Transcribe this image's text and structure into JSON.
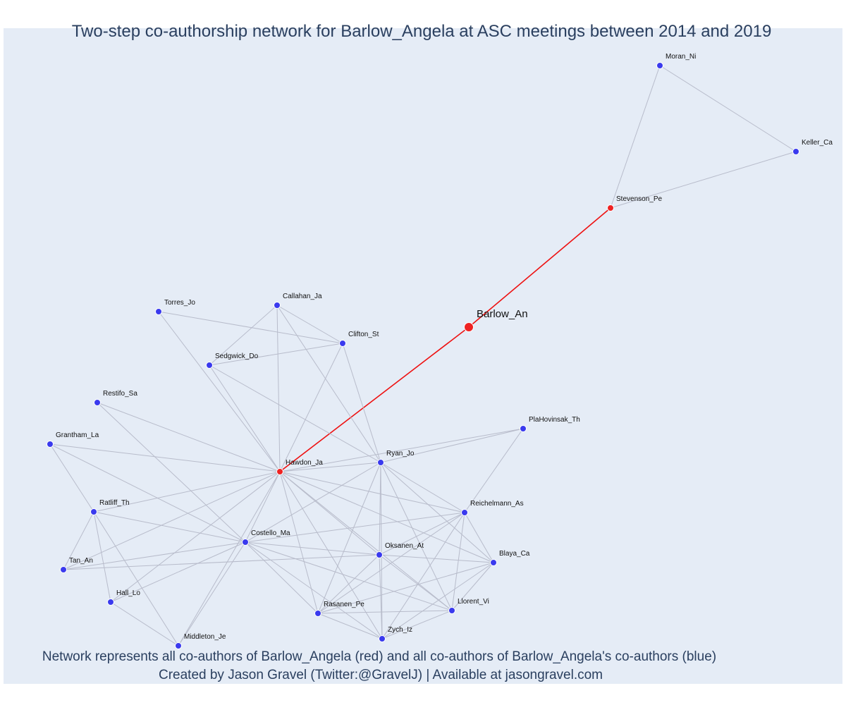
{
  "title": "Two-step co-authorship network for Barlow_Angela at ASC meetings between 2014 and 2019",
  "footer": {
    "line1": "Network represents all co-authors of Barlow_Angela (red) and all co-authors of Barlow_Angela's co-authors (blue)",
    "line2": "Created by Jason Gravel (Twitter:@GravelJ) | Available at jasongravel.com"
  },
  "colors": {
    "background": "#e5ecf6",
    "focal": "#ee2222",
    "coauthor": "#ee2222",
    "second_step": "#3a3aee",
    "edge": "#b8bccb",
    "focal_edge": "#ee1111"
  },
  "nodes": [
    {
      "id": "Barlow_An",
      "group": "focal"
    },
    {
      "id": "Stevenson_Pe",
      "group": "coauthor"
    },
    {
      "id": "Hawdon_Ja",
      "group": "coauthor"
    },
    {
      "id": "Moran_Ni",
      "group": "second"
    },
    {
      "id": "Keller_Ca",
      "group": "second"
    },
    {
      "id": "Torres_Jo",
      "group": "second"
    },
    {
      "id": "Callahan_Ja",
      "group": "second"
    },
    {
      "id": "Clifton_St",
      "group": "second"
    },
    {
      "id": "Sedgwick_Do",
      "group": "second"
    },
    {
      "id": "Restifo_Sa",
      "group": "second"
    },
    {
      "id": "Grantham_La",
      "group": "second"
    },
    {
      "id": "PlaHovinsak_Th",
      "group": "second"
    },
    {
      "id": "Ryan_Jo",
      "group": "second"
    },
    {
      "id": "Reichelmann_As",
      "group": "second"
    },
    {
      "id": "Ratliff_Th",
      "group": "second"
    },
    {
      "id": "Costello_Ma",
      "group": "second"
    },
    {
      "id": "Oksanen_At",
      "group": "second"
    },
    {
      "id": "Blaya_Ca",
      "group": "second"
    },
    {
      "id": "Tan_An",
      "group": "second"
    },
    {
      "id": "Hall_Lo",
      "group": "second"
    },
    {
      "id": "Rasanen_Pe",
      "group": "second"
    },
    {
      "id": "Llorent_Vi",
      "group": "second"
    },
    {
      "id": "Zych_Iz",
      "group": "second"
    },
    {
      "id": "Middleton_Je",
      "group": "second"
    }
  ],
  "edges": [
    [
      "Barlow_An",
      "Stevenson_Pe"
    ],
    [
      "Barlow_An",
      "Hawdon_Ja"
    ],
    [
      "Stevenson_Pe",
      "Moran_Ni"
    ],
    [
      "Stevenson_Pe",
      "Keller_Ca"
    ],
    [
      "Moran_Ni",
      "Keller_Ca"
    ],
    [
      "Torres_Jo",
      "Hawdon_Ja"
    ],
    [
      "Torres_Jo",
      "Clifton_St"
    ],
    [
      "Callahan_Ja",
      "Hawdon_Ja"
    ],
    [
      "Callahan_Ja",
      "Clifton_St"
    ],
    [
      "Callahan_Ja",
      "Sedgwick_Do"
    ],
    [
      "Callahan_Ja",
      "Ryan_Jo"
    ],
    [
      "Clifton_St",
      "Hawdon_Ja"
    ],
    [
      "Clifton_St",
      "Sedgwick_Do"
    ],
    [
      "Clifton_St",
      "Ryan_Jo"
    ],
    [
      "Sedgwick_Do",
      "Hawdon_Ja"
    ],
    [
      "Sedgwick_Do",
      "Ryan_Jo"
    ],
    [
      "Restifo_Sa",
      "Hawdon_Ja"
    ],
    [
      "Restifo_Sa",
      "Costello_Ma"
    ],
    [
      "Grantham_La",
      "Hawdon_Ja"
    ],
    [
      "Grantham_La",
      "Ratliff_Th"
    ],
    [
      "Grantham_La",
      "Costello_Ma"
    ],
    [
      "PlaHovinsak_Th",
      "Hawdon_Ja"
    ],
    [
      "PlaHovinsak_Th",
      "Ryan_Jo"
    ],
    [
      "PlaHovinsak_Th",
      "Reichelmann_As"
    ],
    [
      "Hawdon_Ja",
      "Ryan_Jo"
    ],
    [
      "Hawdon_Ja",
      "Reichelmann_As"
    ],
    [
      "Hawdon_Ja",
      "Ratliff_Th"
    ],
    [
      "Hawdon_Ja",
      "Costello_Ma"
    ],
    [
      "Hawdon_Ja",
      "Oksanen_At"
    ],
    [
      "Hawdon_Ja",
      "Blaya_Ca"
    ],
    [
      "Hawdon_Ja",
      "Tan_An"
    ],
    [
      "Hawdon_Ja",
      "Hall_Lo"
    ],
    [
      "Hawdon_Ja",
      "Rasanen_Pe"
    ],
    [
      "Hawdon_Ja",
      "Llorent_Vi"
    ],
    [
      "Hawdon_Ja",
      "Zych_Iz"
    ],
    [
      "Hawdon_Ja",
      "Middleton_Je"
    ],
    [
      "Ryan_Jo",
      "Reichelmann_As"
    ],
    [
      "Ryan_Jo",
      "Blaya_Ca"
    ],
    [
      "Ryan_Jo",
      "Costello_Ma"
    ],
    [
      "Ryan_Jo",
      "Oksanen_At"
    ],
    [
      "Ryan_Jo",
      "Rasanen_Pe"
    ],
    [
      "Ryan_Jo",
      "Llorent_Vi"
    ],
    [
      "Ryan_Jo",
      "Zych_Iz"
    ],
    [
      "Reichelmann_As",
      "Costello_Ma"
    ],
    [
      "Reichelmann_As",
      "Oksanen_At"
    ],
    [
      "Reichelmann_As",
      "Blaya_Ca"
    ],
    [
      "Reichelmann_As",
      "Rasanen_Pe"
    ],
    [
      "Reichelmann_As",
      "Llorent_Vi"
    ],
    [
      "Reichelmann_As",
      "Zych_Iz"
    ],
    [
      "Ratliff_Th",
      "Costello_Ma"
    ],
    [
      "Ratliff_Th",
      "Tan_An"
    ],
    [
      "Ratliff_Th",
      "Hall_Lo"
    ],
    [
      "Ratliff_Th",
      "Middleton_Je"
    ],
    [
      "Costello_Ma",
      "Oksanen_At"
    ],
    [
      "Costello_Ma",
      "Tan_An"
    ],
    [
      "Costello_Ma",
      "Hall_Lo"
    ],
    [
      "Costello_Ma",
      "Rasanen_Pe"
    ],
    [
      "Costello_Ma",
      "Llorent_Vi"
    ],
    [
      "Costello_Ma",
      "Zych_Iz"
    ],
    [
      "Costello_Ma",
      "Middleton_Je"
    ],
    [
      "Oksanen_At",
      "Blaya_Ca"
    ],
    [
      "Oksanen_At",
      "Rasanen_Pe"
    ],
    [
      "Oksanen_At",
      "Llorent_Vi"
    ],
    [
      "Oksanen_At",
      "Zych_Iz"
    ],
    [
      "Blaya_Ca",
      "Rasanen_Pe"
    ],
    [
      "Blaya_Ca",
      "Llorent_Vi"
    ],
    [
      "Blaya_Ca",
      "Zych_Iz"
    ],
    [
      "Tan_An",
      "Oksanen_At"
    ],
    [
      "Hall_Lo",
      "Middleton_Je"
    ],
    [
      "Rasanen_Pe",
      "Llorent_Vi"
    ],
    [
      "Rasanen_Pe",
      "Zych_Iz"
    ],
    [
      "Llorent_Vi",
      "Zych_Iz"
    ]
  ]
}
